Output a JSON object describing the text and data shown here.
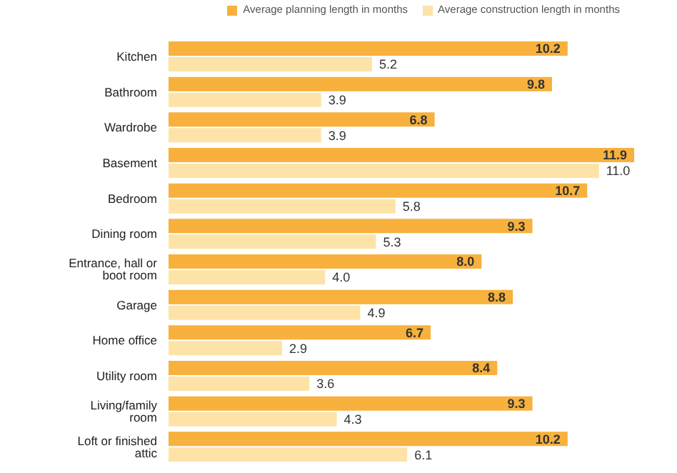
{
  "chart_data": {
    "type": "bar",
    "orientation": "horizontal",
    "legend": "top right",
    "categories": [
      "Kitchen",
      "Bathroom",
      "Wardrobe",
      "Basement",
      "Bedroom",
      "Dining room",
      "Entrance, hall or boot room",
      "Garage",
      "Home office",
      "Utility room",
      "Living/family room",
      "Loft or finished attic"
    ],
    "series": [
      {
        "name": "Average planning length in months",
        "color": "#f7b13c",
        "values": [
          10.2,
          9.8,
          6.8,
          11.9,
          10.7,
          9.3,
          8.0,
          8.8,
          6.7,
          8.4,
          9.3,
          10.2
        ],
        "value_labels": [
          "10.2",
          "9.8",
          "6.8",
          "11.9",
          "10.7",
          "9.3",
          "8.0",
          "8.8",
          "6.7",
          "8.4",
          "9.3",
          "10.2"
        ]
      },
      {
        "name": "Average construction length in months",
        "color": "#fde3a7",
        "values": [
          5.2,
          3.9,
          3.9,
          11.0,
          5.8,
          5.3,
          4.0,
          4.9,
          2.9,
          3.6,
          4.3,
          6.1
        ],
        "value_labels": [
          "5.2",
          "3.9",
          "3.9",
          "11.0",
          "5.8",
          "5.3",
          "4.0",
          "4.9",
          "2.9",
          "3.6",
          "4.3",
          "6.1"
        ]
      }
    ]
  }
}
